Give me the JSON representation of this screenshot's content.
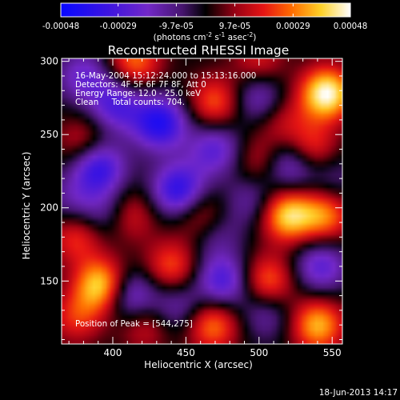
{
  "colorbar": {
    "ticks": [
      "-0.00048",
      "-0.00029",
      "-9.7e-05",
      "9.7e-05",
      "0.00029",
      "0.00048"
    ],
    "tick_values": [
      -0.00048,
      -0.00029,
      -9.7e-05,
      9.7e-05,
      0.00029,
      0.00048
    ],
    "range": [
      -0.00048,
      0.00048
    ],
    "unit_prefix": "(photons cm",
    "unit_exp1": "-2",
    "unit_mid": " s",
    "unit_exp2": "-1",
    "unit_mid2": " asec",
    "unit_exp3": "-2",
    "unit_suffix": ")"
  },
  "chart_data": {
    "type": "heatmap",
    "title": "Reconstructed RHESSI Image",
    "xlabel": "Heliocentric X (arcsec)",
    "ylabel": "Heliocentric Y (arcsec)",
    "xlim": [
      365,
      557
    ],
    "ylim": [
      107,
      302
    ],
    "xticks": [
      "400",
      "450",
      "500",
      "550"
    ],
    "xtick_values": [
      400,
      450,
      500,
      550
    ],
    "yticks": [
      "150",
      "200",
      "250",
      "300"
    ],
    "ytick_values": [
      150,
      200,
      250,
      300
    ],
    "annotations": [
      "16-May-2004 15:12:24.000 to 15:13:16.000",
      "Detectors: 4F 5F 6F 7F 8F, Att 0",
      "Energy Range: 12.0 - 25.0 keV",
      "Clean     Total counts: 704."
    ],
    "peak_label": "Position of Peak = [544,275]",
    "peak": [
      544,
      275
    ],
    "blobs": [
      {
        "x": 546,
        "y": 278,
        "v": 0.00048
      },
      {
        "x": 392,
        "y": 147,
        "v": 0.00042
      },
      {
        "x": 519,
        "y": 195,
        "v": 0.0004
      },
      {
        "x": 540,
        "y": 120,
        "v": 0.00036
      },
      {
        "x": 545,
        "y": 195,
        "v": 0.0003
      },
      {
        "x": 468,
        "y": 120,
        "v": 0.0003
      },
      {
        "x": 415,
        "y": 300,
        "v": 0.00028
      },
      {
        "x": 470,
        "y": 272,
        "v": 0.00026
      },
      {
        "x": 440,
        "y": 160,
        "v": 0.00025
      },
      {
        "x": 506,
        "y": 150,
        "v": 0.00028
      },
      {
        "x": 535,
        "y": 240,
        "v": 0.00026
      },
      {
        "x": 410,
        "y": 195,
        "v": 0.00024
      },
      {
        "x": 375,
        "y": 180,
        "v": 0.00022
      },
      {
        "x": 375,
        "y": 125,
        "v": 0.0002
      },
      {
        "x": 460,
        "y": 195,
        "v": 0.0002
      },
      {
        "x": 380,
        "y": 245,
        "v": 0.00018
      },
      {
        "x": 500,
        "y": 232,
        "v": 0.00016
      },
      {
        "x": 422,
        "y": 120,
        "v": 0.00018
      },
      {
        "x": 500,
        "y": 300,
        "v": 0.00018
      },
      {
        "x": 515,
        "y": 260,
        "v": 0.00015
      },
      {
        "x": 432,
        "y": 258,
        "v": -0.0004
      },
      {
        "x": 445,
        "y": 212,
        "v": -0.00038
      },
      {
        "x": 390,
        "y": 228,
        "v": -0.00036
      },
      {
        "x": 402,
        "y": 270,
        "v": -0.00028
      },
      {
        "x": 470,
        "y": 240,
        "v": -0.00026
      },
      {
        "x": 412,
        "y": 140,
        "v": -0.00028
      },
      {
        "x": 475,
        "y": 150,
        "v": -0.0003
      },
      {
        "x": 522,
        "y": 230,
        "v": -0.00028
      },
      {
        "x": 542,
        "y": 160,
        "v": -0.00026
      },
      {
        "x": 500,
        "y": 275,
        "v": -0.00022
      },
      {
        "x": 398,
        "y": 196,
        "v": -0.0002
      },
      {
        "x": 380,
        "y": 290,
        "v": -0.00022
      },
      {
        "x": 495,
        "y": 205,
        "v": -0.00016
      },
      {
        "x": 470,
        "y": 182,
        "v": -0.00014
      },
      {
        "x": 505,
        "y": 128,
        "v": -0.00016
      },
      {
        "x": 444,
        "y": 132,
        "v": -0.00018
      },
      {
        "x": 373,
        "y": 205,
        "v": -0.00014
      },
      {
        "x": 550,
        "y": 220,
        "v": -0.00012
      }
    ],
    "sigma": 13
  },
  "footer": {
    "date": "18-Jun-2013 14:17"
  }
}
